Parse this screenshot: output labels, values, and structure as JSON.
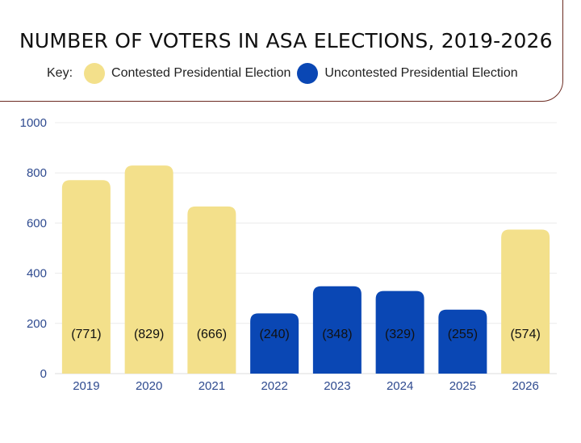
{
  "chart_data": {
    "type": "bar",
    "title": "NUMBER OF VOTERS IN ASA ELECTIONS, 2019-2026",
    "legend_key_label": "Key:",
    "legend": [
      {
        "name": "Contested Presidential Election",
        "color": "#f3e08b"
      },
      {
        "name": "Uncontested Presidential Election",
        "color": "#0a47b4"
      }
    ],
    "categories": [
      "2019",
      "2020",
      "2021",
      "2022",
      "2023",
      "2024",
      "2025",
      "2026"
    ],
    "values": [
      771,
      829,
      666,
      240,
      348,
      329,
      255,
      574
    ],
    "data_labels": [
      "(771)",
      "(829)",
      "(666)",
      "(240)",
      "(348)",
      "(329)",
      "(255)",
      "(574)"
    ],
    "election_type": [
      "Contested Presidential Election",
      "Contested Presidential Election",
      "Contested Presidential Election",
      "Uncontested Presidential Election",
      "Uncontested Presidential Election",
      "Uncontested Presidential Election",
      "Uncontested Presidential Election",
      "Contested Presidential Election"
    ],
    "yticks": [
      "0",
      "200",
      "400",
      "600",
      "800",
      "1000"
    ],
    "ylim": [
      0,
      1000
    ],
    "xlabel": "",
    "ylabel": "",
    "grid": true
  }
}
